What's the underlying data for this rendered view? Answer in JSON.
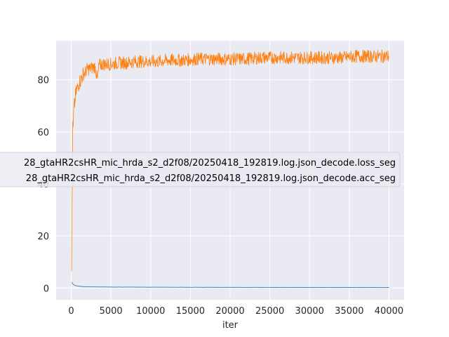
{
  "chart_data": {
    "type": "line",
    "title": "",
    "xlabel": "iter",
    "ylabel": "",
    "xlim": [
      -1900,
      41900
    ],
    "ylim": [
      -4.5,
      95
    ],
    "xticks": [
      0,
      5000,
      10000,
      15000,
      20000,
      25000,
      30000,
      35000,
      40000
    ],
    "yticks": [
      0,
      20,
      40,
      60,
      80
    ],
    "grid": true,
    "background": "#eaeaf2",
    "legend_position": "center-left",
    "series": [
      {
        "name": "28_gtaHR2csHR_mic_hrda_s2_d2f08/20250418_192819.log.json_decode.loss_seg",
        "color": "#1f77b4",
        "x": [
          50,
          150,
          300,
          500,
          800,
          1200,
          1600,
          2000,
          3000,
          4000,
          5000,
          6000,
          8000,
          10000,
          12000,
          15000,
          18000,
          20000,
          25000,
          30000,
          35000,
          40000
        ],
        "y": [
          2.3,
          1.8,
          1.3,
          1.0,
          0.8,
          0.65,
          0.55,
          0.5,
          0.45,
          0.42,
          0.4,
          0.38,
          0.36,
          0.34,
          0.32,
          0.3,
          0.28,
          0.27,
          0.25,
          0.23,
          0.22,
          0.2
        ]
      },
      {
        "name": "28_gtaHR2csHR_mic_hrda_s2_d2f08/20250418_192819.log.json_decode.acc_seg",
        "color": "#ff7f0e",
        "x": [
          50,
          100,
          150,
          200,
          250,
          300,
          400,
          500,
          600,
          800,
          1000,
          1200,
          1500,
          1800,
          2000,
          2500,
          3000,
          3300,
          3500,
          4000,
          5000,
          6000,
          7000,
          8000,
          9000,
          10000,
          11000,
          12000,
          14000,
          16000,
          18000,
          20000,
          22000,
          24000,
          26000,
          28000,
          30000,
          32000,
          34000,
          36000,
          38000,
          40000
        ],
        "y": [
          6.5,
          30,
          52,
          64,
          62,
          68,
          70,
          73,
          75,
          77,
          79,
          80,
          82,
          83,
          84,
          84.5,
          85,
          80,
          85.5,
          86,
          86,
          86.5,
          86.5,
          87,
          87,
          87,
          87,
          87.5,
          87.5,
          88,
          88,
          88,
          88,
          88.5,
          88.5,
          88.5,
          88.5,
          88.5,
          88.5,
          89,
          89,
          89
        ]
      }
    ]
  }
}
